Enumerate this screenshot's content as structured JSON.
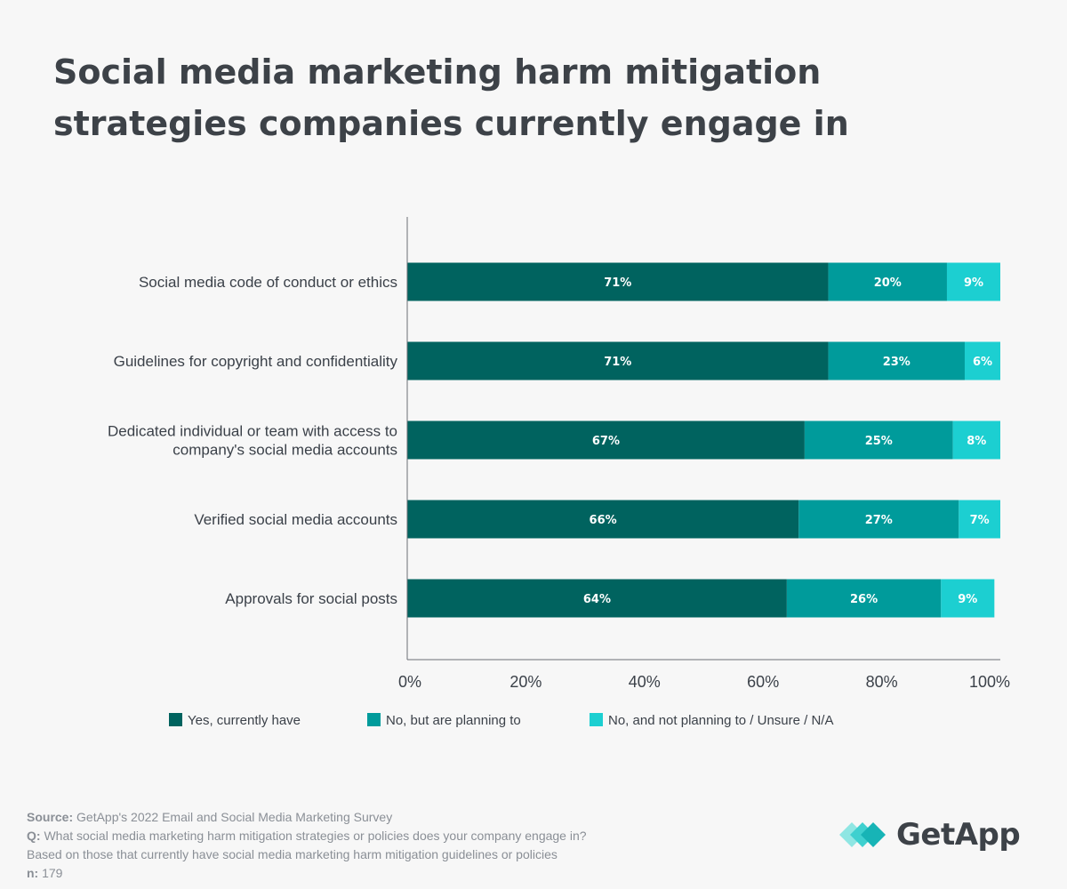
{
  "colors": {
    "yes": "#00635f",
    "planning": "#009b9b",
    "not_planning": "#1ccfd1",
    "text": "#3b4149",
    "axis": "#6b6f75",
    "logo_light": "#7fe3e0",
    "logo_dark": "#17bfbf"
  },
  "chart_data": {
    "type": "bar",
    "orientation": "horizontal",
    "stacked": true,
    "title": "Social media marketing harm mitigation strategies companies currently engage in",
    "categories": [
      [
        "Social media code of conduct or ethics"
      ],
      [
        "Guidelines for copyright and confidentiality"
      ],
      [
        "Dedicated individual or team with access to",
        "company's social media accounts"
      ],
      [
        "Verified social media accounts"
      ],
      [
        "Approvals for social posts"
      ]
    ],
    "series": [
      {
        "name": "Yes, currently have",
        "color_key": "yes",
        "values": [
          71,
          71,
          67,
          66,
          64
        ],
        "labels": [
          "71%",
          "71%",
          "67%",
          "66%",
          "64%"
        ]
      },
      {
        "name": "No, but are planning to",
        "color_key": "planning",
        "values": [
          20,
          23,
          25,
          27,
          26
        ],
        "labels": [
          "20%",
          "23%",
          "25%",
          "27%",
          "26%"
        ]
      },
      {
        "name": "No, and not planning to / Unsure / N/A",
        "color_key": "not_planning",
        "values": [
          9,
          6,
          8,
          7,
          9
        ],
        "labels": [
          "9%",
          "6%",
          "8%",
          "7%",
          "9%"
        ]
      }
    ],
    "xlim": [
      0,
      100
    ],
    "xticks": [
      0,
      20,
      40,
      60,
      80,
      100
    ],
    "xtick_labels": [
      "0%",
      "20%",
      "40%",
      "60%",
      "80%",
      "100%"
    ],
    "xlabel": "",
    "ylabel": "",
    "grid": false,
    "legend_position": "bottom"
  },
  "footer": {
    "source_key": "Source:",
    "source_text": " GetApp's 2022 Email and Social Media Marketing Survey",
    "q_key": "Q:",
    "q_text": " What social media marketing harm mitigation strategies or policies does your company engage in?",
    "base_text": "Based on those that currently have social media marketing harm mitigation guidelines or policies",
    "n_key": "n:",
    "n_text": " 179"
  },
  "logo": {
    "text": "GetApp"
  }
}
